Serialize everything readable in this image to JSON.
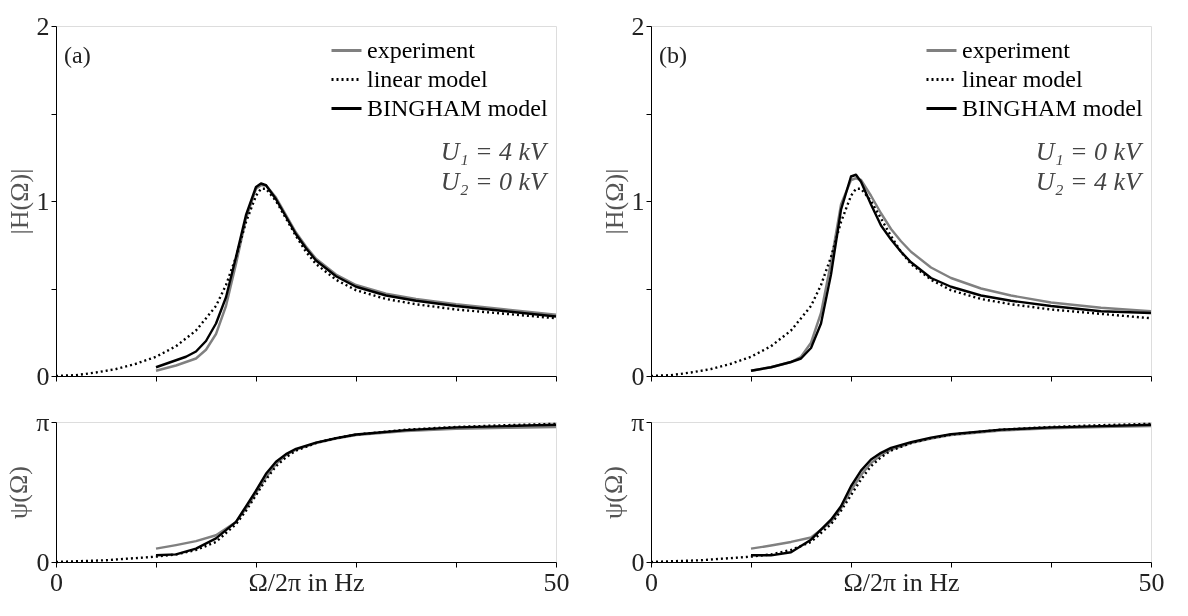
{
  "chart_data": [
    {
      "type": "line",
      "ylabel": "|H(Ω)|",
      "annotations": [
        "(a)",
        "U₁ = 4 kV",
        "U₂ = 0 kV"
      ],
      "legend": "top right",
      "tick_labels": "y",
      "xlim": [
        0,
        50
      ],
      "xticks": [
        0,
        {
          "value": 10,
          "label": null
        },
        {
          "value": 20,
          "label": null
        },
        {
          "value": 30,
          "label": null
        },
        {
          "value": 40,
          "label": null
        },
        50
      ],
      "ylim": [
        0,
        2
      ],
      "yticks": [
        0,
        {
          "value": 0.5,
          "label": null
        },
        1,
        {
          "value": 1.5,
          "label": null
        },
        2
      ],
      "series": [
        {
          "name": "experiment",
          "color": "#808080",
          "line_style": "solid",
          "x": [
            10,
            12,
            14,
            15,
            16,
            17,
            18,
            19,
            20,
            20.5,
            21,
            22,
            23,
            24,
            25,
            26,
            28,
            30,
            33,
            36,
            40,
            45,
            50
          ],
          "values": [
            0.03,
            0.06,
            0.1,
            0.15,
            0.24,
            0.4,
            0.64,
            0.9,
            1.07,
            1.09,
            1.09,
            1.02,
            0.92,
            0.82,
            0.74,
            0.67,
            0.58,
            0.52,
            0.47,
            0.44,
            0.41,
            0.38,
            0.35
          ]
        },
        {
          "name": "linear model",
          "color": "#000000",
          "line_style": "dotted",
          "x": [
            0,
            2,
            4,
            6,
            8,
            10,
            12,
            14,
            16,
            17,
            18,
            19,
            20,
            20.5,
            21,
            22,
            23,
            24,
            25,
            26,
            28,
            30,
            33,
            36,
            40,
            45,
            50
          ],
          "values": [
            0,
            0.005,
            0.02,
            0.04,
            0.07,
            0.11,
            0.17,
            0.26,
            0.4,
            0.52,
            0.68,
            0.88,
            1.03,
            1.07,
            1.07,
            1.0,
            0.9,
            0.8,
            0.71,
            0.64,
            0.55,
            0.49,
            0.44,
            0.41,
            0.38,
            0.355,
            0.33
          ]
        },
        {
          "name": "BINGHAM model",
          "color": "#000000",
          "line_style": "solid",
          "x": [
            10,
            11,
            12,
            13,
            14,
            15,
            16,
            17,
            18,
            19,
            20,
            20.5,
            21,
            22,
            23,
            24,
            25,
            26,
            28,
            30,
            33,
            36,
            40,
            45,
            50
          ],
          "values": [
            0.05,
            0.07,
            0.09,
            0.11,
            0.14,
            0.2,
            0.3,
            0.45,
            0.68,
            0.92,
            1.08,
            1.1,
            1.09,
            1.01,
            0.91,
            0.81,
            0.73,
            0.66,
            0.57,
            0.51,
            0.46,
            0.43,
            0.4,
            0.37,
            0.34
          ]
        }
      ]
    },
    {
      "type": "line",
      "ylabel": "|H(Ω)|",
      "annotations": [
        "(b)",
        "U₁ = 0 kV",
        "U₂ = 4 kV"
      ],
      "legend": "top right",
      "tick_labels": "y",
      "xlim": [
        0,
        50
      ],
      "xticks": [
        0,
        {
          "value": 10,
          "label": null
        },
        {
          "value": 20,
          "label": null
        },
        {
          "value": 30,
          "label": null
        },
        {
          "value": 40,
          "label": null
        },
        50
      ],
      "ylim": [
        0,
        2
      ],
      "yticks": [
        0,
        {
          "value": 0.5,
          "label": null
        },
        1,
        {
          "value": 1.5,
          "label": null
        },
        2
      ],
      "series": [
        {
          "name": "experiment",
          "color": "#808080",
          "line_style": "solid",
          "x": [
            10,
            12,
            14,
            15,
            16,
            17,
            18,
            19,
            20,
            20.5,
            21,
            22,
            23,
            24,
            25,
            26,
            28,
            30,
            33,
            36,
            40,
            45,
            50
          ],
          "values": [
            0.03,
            0.05,
            0.08,
            0.11,
            0.19,
            0.36,
            0.65,
            0.98,
            1.12,
            1.13,
            1.12,
            1.03,
            0.93,
            0.84,
            0.77,
            0.71,
            0.62,
            0.56,
            0.5,
            0.46,
            0.42,
            0.39,
            0.37
          ]
        },
        {
          "name": "linear model",
          "color": "#000000",
          "line_style": "dotted",
          "x": [
            0,
            2,
            4,
            6,
            8,
            10,
            12,
            14,
            16,
            17,
            18,
            19,
            20,
            20.5,
            21,
            22,
            23,
            24,
            25,
            26,
            28,
            30,
            33,
            36,
            40,
            45,
            50
          ],
          "values": [
            0,
            0.005,
            0.02,
            0.04,
            0.07,
            0.11,
            0.17,
            0.26,
            0.4,
            0.52,
            0.68,
            0.88,
            1.03,
            1.07,
            1.07,
            1.0,
            0.9,
            0.8,
            0.71,
            0.64,
            0.55,
            0.49,
            0.44,
            0.41,
            0.38,
            0.355,
            0.33
          ]
        },
        {
          "name": "BINGHAM model",
          "color": "#000000",
          "line_style": "solid",
          "x": [
            10,
            12,
            14,
            15,
            16,
            17,
            18,
            19,
            20,
            20.5,
            21,
            22,
            23,
            24,
            25,
            26,
            28,
            30,
            33,
            36,
            40,
            45,
            50
          ],
          "values": [
            0.03,
            0.05,
            0.08,
            0.1,
            0.16,
            0.3,
            0.58,
            0.95,
            1.14,
            1.15,
            1.11,
            0.98,
            0.86,
            0.78,
            0.71,
            0.65,
            0.56,
            0.51,
            0.46,
            0.43,
            0.4,
            0.37,
            0.36
          ]
        }
      ]
    },
    {
      "type": "line",
      "ylabel": "ψ(Ω)",
      "xlabel": "Ω/2π in Hz",
      "xlim": [
        0,
        50
      ],
      "xticks": [
        0,
        {
          "value": 10,
          "label": null
        },
        {
          "value": 20,
          "label": null
        },
        {
          "value": 30,
          "label": null
        },
        {
          "value": 40,
          "label": null
        },
        50
      ],
      "ylim": [
        0,
        3.1416
      ],
      "yticks": [
        0,
        {
          "value": 3.1416,
          "label": "π"
        }
      ],
      "series": [
        {
          "color": "#808080",
          "line_style": "solid",
          "x": [
            10,
            12,
            14,
            16,
            18,
            19,
            20,
            21,
            22,
            23,
            24,
            26,
            28,
            30,
            35,
            40,
            45,
            50
          ],
          "values": [
            0.3,
            0.38,
            0.47,
            0.6,
            0.9,
            1.2,
            1.55,
            1.9,
            2.2,
            2.4,
            2.52,
            2.67,
            2.77,
            2.85,
            2.94,
            2.99,
            3.01,
            3.03
          ]
        },
        {
          "color": "#000000",
          "line_style": "dotted",
          "x": [
            0,
            5,
            10,
            12,
            14,
            16,
            18,
            19,
            20,
            21,
            22,
            23,
            24,
            26,
            28,
            30,
            35,
            40,
            45,
            50
          ],
          "values": [
            0,
            0.04,
            0.12,
            0.17,
            0.27,
            0.45,
            0.85,
            1.15,
            1.5,
            1.85,
            2.15,
            2.35,
            2.5,
            2.67,
            2.78,
            2.86,
            2.97,
            3.03,
            3.07,
            3.1
          ]
        },
        {
          "color": "#000000",
          "line_style": "solid",
          "x": [
            10,
            12,
            14,
            16,
            18,
            19,
            20,
            21,
            22,
            23,
            24,
            26,
            28,
            30,
            35,
            40,
            45,
            50
          ],
          "values": [
            0.15,
            0.17,
            0.3,
            0.53,
            0.9,
            1.25,
            1.6,
            1.98,
            2.25,
            2.42,
            2.54,
            2.68,
            2.78,
            2.86,
            2.96,
            3.02,
            3.05,
            3.08
          ]
        }
      ]
    },
    {
      "type": "line",
      "ylabel": "ψ(Ω)",
      "xlabel": "Ω/2π in Hz",
      "xlim": [
        0,
        50
      ],
      "xticks": [
        0,
        {
          "value": 10,
          "label": null
        },
        {
          "value": 20,
          "label": null
        },
        {
          "value": 30,
          "label": null
        },
        {
          "value": 40,
          "label": null
        },
        50
      ],
      "ylim": [
        0,
        3.1416
      ],
      "yticks": [
        0,
        {
          "value": 3.1416,
          "label": "π"
        }
      ],
      "series": [
        {
          "color": "#808080",
          "line_style": "solid",
          "x": [
            10,
            12,
            14,
            16,
            18,
            19,
            20,
            21,
            22,
            23,
            24,
            26,
            28,
            30,
            35,
            40,
            45,
            50
          ],
          "values": [
            0.3,
            0.37,
            0.45,
            0.55,
            0.9,
            1.2,
            1.6,
            1.95,
            2.22,
            2.4,
            2.52,
            2.67,
            2.77,
            2.85,
            2.95,
            3.0,
            3.03,
            3.05
          ]
        },
        {
          "color": "#000000",
          "line_style": "dotted",
          "x": [
            0,
            5,
            10,
            12,
            14,
            16,
            18,
            19,
            20,
            21,
            22,
            23,
            24,
            26,
            28,
            30,
            35,
            40,
            45,
            50
          ],
          "values": [
            0,
            0.04,
            0.12,
            0.17,
            0.27,
            0.45,
            0.85,
            1.15,
            1.5,
            1.85,
            2.15,
            2.35,
            2.5,
            2.67,
            2.78,
            2.86,
            2.97,
            3.03,
            3.07,
            3.1
          ]
        },
        {
          "color": "#000000",
          "line_style": "solid",
          "x": [
            10,
            12,
            14,
            16,
            18,
            19,
            20,
            21,
            22,
            23,
            24,
            26,
            28,
            30,
            35,
            40,
            45,
            50
          ],
          "values": [
            0.15,
            0.15,
            0.22,
            0.5,
            0.95,
            1.25,
            1.7,
            2.05,
            2.3,
            2.45,
            2.56,
            2.69,
            2.79,
            2.87,
            2.97,
            3.02,
            3.05,
            3.08
          ]
        }
      ]
    }
  ]
}
